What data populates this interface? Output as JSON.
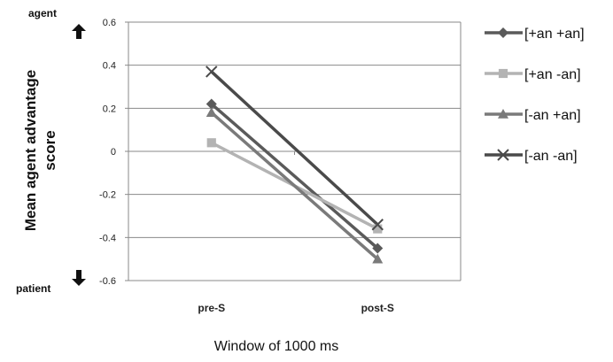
{
  "chart_data": {
    "type": "line",
    "categories": [
      "pre-S",
      "post-S"
    ],
    "series": [
      {
        "name": "[+an +an]",
        "values": [
          0.22,
          -0.45
        ],
        "color": "#5a5a5a",
        "marker": "diamond"
      },
      {
        "name": "[+an -an]",
        "values": [
          0.04,
          -0.36
        ],
        "color": "#b3b3b3",
        "marker": "square"
      },
      {
        "name": "[-an +an]",
        "values": [
          0.18,
          -0.5
        ],
        "color": "#7a7a7a",
        "marker": "triangle"
      },
      {
        "name": "[-an -an]",
        "values": [
          0.37,
          -0.34
        ],
        "color": "#4a4a4a",
        "marker": "x"
      }
    ],
    "ylim": [
      -0.6,
      0.6
    ],
    "yticks": [
      "0.6",
      "0.4",
      "0.2",
      "0",
      "-0.2",
      "-0.4",
      "-0.6"
    ],
    "ylabel_line1": "Mean agent advantage",
    "ylabel_line2": "score",
    "xlabel": "Window of 1000 ms",
    "top_annotation": "agent",
    "bottom_annotation": "patient",
    "grid": true,
    "legend_position": "right"
  }
}
